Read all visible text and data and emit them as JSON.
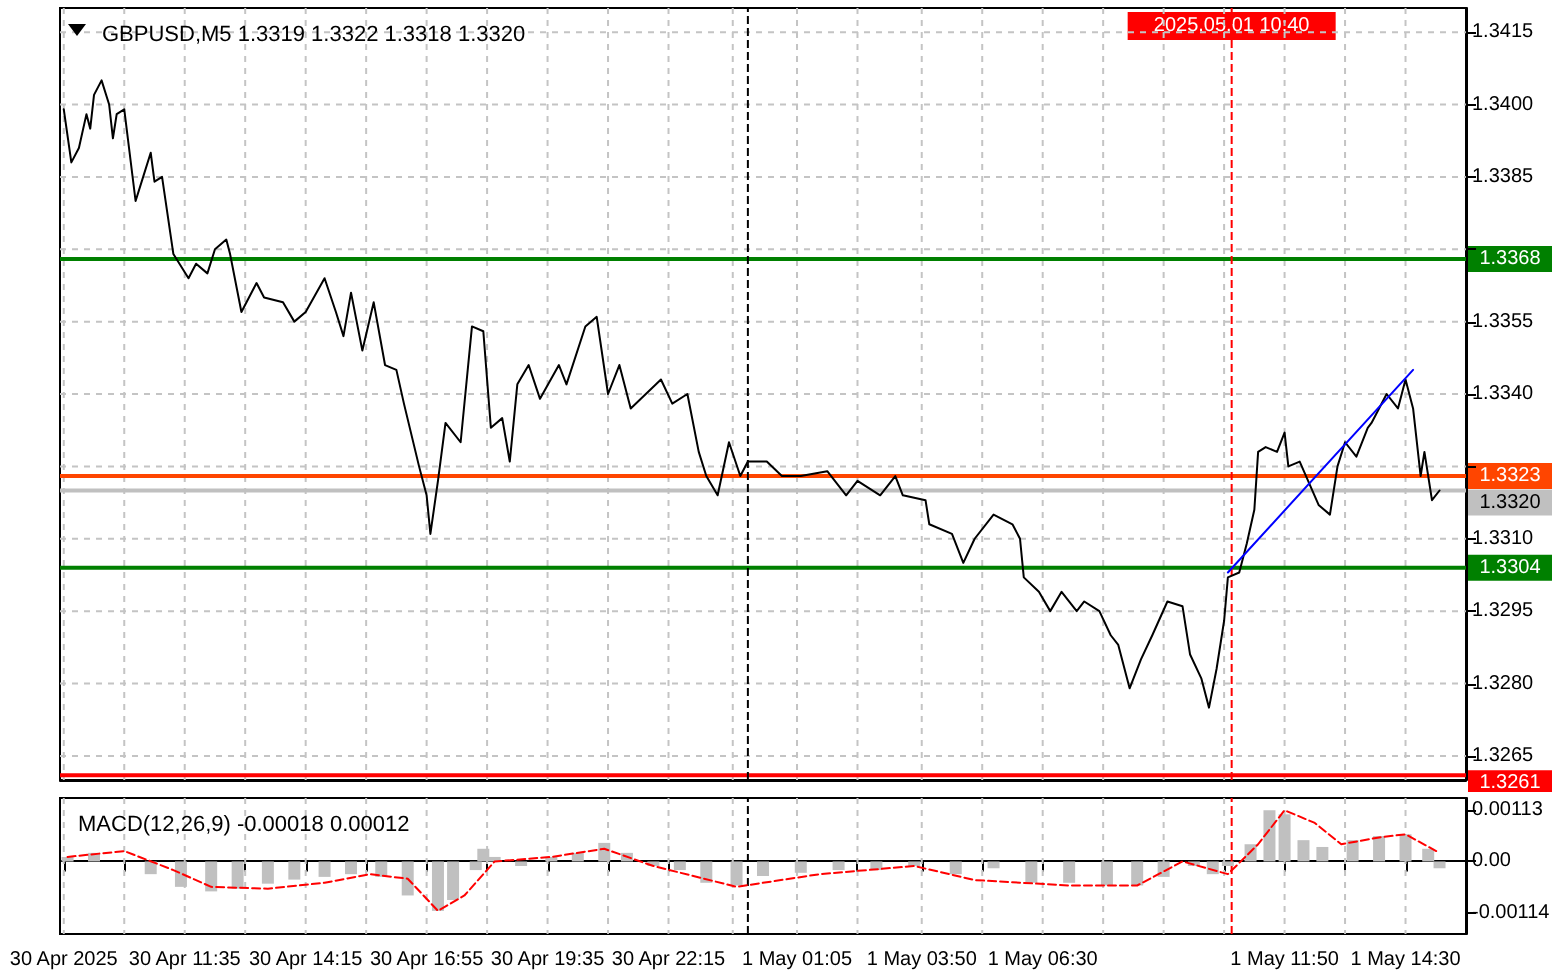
{
  "chart_data": [
    {
      "type": "line",
      "title": "GBPUSD,M5 1.3319 1.3322 1.3318 1.3320",
      "series": [
        {
          "color": "#000000",
          "x": [
            "2025-04-30T08:55",
            "2025-04-30T09:05",
            "2025-04-30T09:15",
            "2025-04-30T09:25",
            "2025-04-30T09:30",
            "2025-04-30T09:35",
            "2025-04-30T09:45",
            "2025-04-30T09:55",
            "2025-04-30T10:00",
            "2025-04-30T10:05",
            "2025-04-30T10:15",
            "2025-04-30T10:30",
            "2025-04-30T10:40",
            "2025-04-30T10:50",
            "2025-04-30T10:55",
            "2025-04-30T11:05",
            "2025-04-30T11:20",
            "2025-04-30T11:40",
            "2025-04-30T11:50",
            "2025-04-30T12:05",
            "2025-04-30T12:15",
            "2025-04-30T12:30",
            "2025-04-30T12:35",
            "2025-04-30T12:50",
            "2025-04-30T13:10",
            "2025-04-30T13:20",
            "2025-04-30T13:45",
            "2025-04-30T14:00",
            "2025-04-30T14:15",
            "2025-04-30T14:40",
            "2025-04-30T14:55",
            "2025-04-30T15:05",
            "2025-04-30T15:15",
            "2025-04-30T15:30",
            "2025-04-30T15:45",
            "2025-04-30T16:00",
            "2025-04-30T16:15",
            "2025-04-30T16:25",
            "2025-04-30T16:45",
            "2025-04-30T16:55",
            "2025-04-30T17:00",
            "2025-04-30T17:10",
            "2025-04-30T17:20",
            "2025-04-30T17:40",
            "2025-04-30T17:55",
            "2025-04-30T18:10",
            "2025-04-30T18:20",
            "2025-04-30T18:35",
            "2025-04-30T18:45",
            "2025-04-30T18:55",
            "2025-04-30T19:10",
            "2025-04-30T19:25",
            "2025-04-30T19:50",
            "2025-04-30T20:00",
            "2025-04-30T20:25",
            "2025-04-30T20:40",
            "2025-04-30T20:55",
            "2025-04-30T21:10",
            "2025-04-30T21:25",
            "2025-04-30T22:05",
            "2025-04-30T22:20",
            "2025-04-30T22:40",
            "2025-04-30T22:55",
            "2025-04-30T23:05",
            "2025-04-30T23:20",
            "2025-04-30T23:35",
            "2025-04-30T23:50",
            "2025-05-01T00:00",
            "2025-05-01T00:25",
            "2025-05-01T00:45",
            "2025-05-01T01:10",
            "2025-05-01T01:45",
            "2025-05-01T02:10",
            "2025-05-01T02:25",
            "2025-05-01T02:55",
            "2025-05-01T03:15",
            "2025-05-01T03:25",
            "2025-05-01T03:55",
            "2025-05-01T04:00",
            "2025-05-01T04:30",
            "2025-05-01T04:45",
            "2025-05-01T05:00",
            "2025-05-01T05:25",
            "2025-05-01T05:50",
            "2025-05-01T06:00",
            "2025-05-01T06:05",
            "2025-05-01T06:25",
            "2025-05-01T06:40",
            "2025-05-01T06:55",
            "2025-05-01T07:15",
            "2025-05-01T07:25",
            "2025-05-01T07:45",
            "2025-05-01T08:00",
            "2025-05-01T08:10",
            "2025-05-01T08:25",
            "2025-05-01T08:40",
            "2025-05-01T08:55",
            "2025-05-01T09:15",
            "2025-05-01T09:35",
            "2025-05-01T09:45",
            "2025-05-01T10:00",
            "2025-05-01T10:10",
            "2025-05-01T10:20",
            "2025-05-01T10:30",
            "2025-05-01T10:35",
            "2025-05-01T10:50",
            "2025-05-01T11:00",
            "2025-05-01T11:10",
            "2025-05-01T11:15",
            "2025-05-01T11:25",
            "2025-05-01T11:40",
            "2025-05-01T11:50",
            "2025-05-01T11:55",
            "2025-05-01T12:10",
            "2025-05-01T12:35",
            "2025-05-01T12:50",
            "2025-05-01T13:00",
            "2025-05-01T13:10",
            "2025-05-01T13:25",
            "2025-05-01T13:40",
            "2025-05-01T13:45",
            "2025-05-01T14:05",
            "2025-05-01T14:20",
            "2025-05-01T14:30",
            "2025-05-01T14:40",
            "2025-05-01T14:50",
            "2025-05-01T14:55",
            "2025-05-01T15:05",
            "2025-05-01T15:15"
          ],
          "values": [
            1.3399,
            1.3388,
            1.3391,
            1.3398,
            1.3395,
            1.3402,
            1.3405,
            1.34,
            1.3393,
            1.3398,
            1.3399,
            1.338,
            1.3385,
            1.339,
            1.3384,
            1.3385,
            1.3369,
            1.3364,
            1.3367,
            1.3365,
            1.337,
            1.3372,
            1.3369,
            1.3357,
            1.3363,
            1.336,
            1.3359,
            1.3355,
            1.3357,
            1.3364,
            1.3357,
            1.3352,
            1.3361,
            1.3349,
            1.3359,
            1.3346,
            1.3345,
            1.3338,
            1.3325,
            1.3319,
            1.3311,
            1.3322,
            1.3334,
            1.333,
            1.3354,
            1.3353,
            1.3333,
            1.3335,
            1.3326,
            1.3342,
            1.3346,
            1.3339,
            1.3346,
            1.3342,
            1.3354,
            1.3356,
            1.334,
            1.3346,
            1.3337,
            1.3343,
            1.3338,
            1.334,
            1.3328,
            1.3323,
            1.3319,
            1.333,
            1.3323,
            1.3326,
            1.3326,
            1.3323,
            1.3323,
            1.3324,
            1.3319,
            1.3322,
            1.3319,
            1.3323,
            1.3319,
            1.3318,
            1.3313,
            1.3311,
            1.3305,
            1.331,
            1.3315,
            1.3313,
            1.331,
            1.3302,
            1.3299,
            1.3295,
            1.3299,
            1.3295,
            1.3297,
            1.3295,
            1.329,
            1.3288,
            1.3279,
            1.3285,
            1.329,
            1.3297,
            1.3296,
            1.3286,
            1.3281,
            1.3275,
            1.3283,
            1.3293,
            1.3302,
            1.3303,
            1.3309,
            1.3316,
            1.3328,
            1.3329,
            1.3328,
            1.3332,
            1.3325,
            1.3326,
            1.3317,
            1.3315,
            1.3325,
            1.333,
            1.3327,
            1.3333,
            1.3334,
            1.334,
            1.3337,
            1.3343,
            1.3337,
            1.3323,
            1.3328,
            1.3318,
            1.332
          ]
        },
        {
          "color": "#0000ff",
          "x": [
            "2025-05-01T10:35",
            "2025-05-01T14:40"
          ],
          "values": [
            1.3303,
            1.3345
          ]
        }
      ],
      "xlim": [
        "2025-04-30T08:50",
        "2025-05-01T15:50"
      ],
      "xticks": [
        {
          "value": "2025-04-30T08:55",
          "label": null
        },
        {
          "value": "2025-04-30T10:15",
          "label": null
        },
        {
          "value": "2025-04-30T11:35",
          "label": null
        },
        {
          "value": "2025-04-30T12:55",
          "label": null
        },
        {
          "value": "2025-04-30T14:15",
          "label": null
        },
        {
          "value": "2025-04-30T15:35",
          "label": null
        },
        {
          "value": "2025-04-30T16:55",
          "label": null
        },
        {
          "value": "2025-04-30T18:15",
          "label": null
        },
        {
          "value": "2025-04-30T19:35",
          "label": null
        },
        {
          "value": "2025-04-30T20:55",
          "label": null
        },
        {
          "value": "2025-04-30T22:15",
          "label": null
        },
        {
          "value": "2025-04-30T23:40",
          "label": null
        },
        {
          "value": "2025-05-01T01:05",
          "label": null
        },
        {
          "value": "2025-05-01T02:25",
          "label": null
        },
        {
          "value": "2025-05-01T03:50",
          "label": null
        },
        {
          "value": "2025-05-01T05:10",
          "label": null
        },
        {
          "value": "2025-05-01T06:30",
          "label": null
        },
        {
          "value": "2025-05-01T07:50",
          "label": null
        },
        {
          "value": "2025-05-01T09:10",
          "label": null
        },
        {
          "value": "2025-05-01T10:30",
          "label": null
        },
        {
          "value": "2025-05-01T11:50",
          "label": null
        },
        {
          "value": "2025-05-01T13:10",
          "label": null
        },
        {
          "value": "2025-05-01T14:30",
          "label": null
        }
      ],
      "ylim": [
        1.326,
        1.342
      ],
      "yticks": [
        {
          "value": 1.3265,
          "label": "1.3265"
        },
        {
          "value": 1.328,
          "label": "1.3280"
        },
        {
          "value": 1.3295,
          "label": "1.3295"
        },
        {
          "value": 1.331,
          "label": "1.3310"
        },
        {
          "value": 1.3325,
          "label": null
        },
        {
          "value": 1.334,
          "label": "1.3340"
        },
        {
          "value": 1.3355,
          "label": "1.3355"
        },
        {
          "value": 1.337,
          "label": null
        },
        {
          "value": 1.3385,
          "label": "1.3385"
        },
        {
          "value": 1.34,
          "label": "1.3400"
        },
        {
          "value": 1.3415,
          "label": "1.3415"
        }
      ],
      "grid": true,
      "tick_labels": "y",
      "marker": "none",
      "ref_lines": [
        {
          "axis": "y",
          "value": 1.3368,
          "label": "1.3368",
          "color": "#008000"
        },
        {
          "axis": "y",
          "value": 1.3304,
          "label": "1.3304",
          "color": "#008000"
        },
        {
          "axis": "y",
          "value": 1.3261,
          "label": "1.3261",
          "color": "#ff0000"
        },
        {
          "axis": "y",
          "value": 1.3323,
          "label": "1.3323",
          "color": "#ff4500"
        },
        {
          "axis": "y",
          "value": 1.332,
          "label": "1.3320",
          "color": "#c0c0c0"
        },
        {
          "axis": "x",
          "value": "2025-05-01T00:00",
          "color": "#000000",
          "line_style": "dashed"
        },
        {
          "axis": "x",
          "value": "2025-05-01T10:40",
          "label": "2025.05.01 10:40",
          "color": "#ff0000",
          "line_style": "dashed"
        }
      ]
    },
    {
      "type": "bar",
      "title": "MACD(12,26,9) -0.00018 0.00012",
      "series": [
        {
          "color": "#c0c0c0",
          "x": [
            "2025-04-30T09:00",
            "2025-04-30T09:35",
            "2025-04-30T10:15",
            "2025-04-30T10:50",
            "2025-04-30T11:30",
            "2025-04-30T12:10",
            "2025-04-30T12:45",
            "2025-04-30T13:25",
            "2025-04-30T14:00",
            "2025-04-30T14:40",
            "2025-04-30T15:15",
            "2025-04-30T15:55",
            "2025-04-30T16:30",
            "2025-04-30T17:10",
            "2025-04-30T17:30",
            "2025-04-30T18:00",
            "2025-04-30T18:10",
            "2025-04-30T18:25",
            "2025-04-30T19:00",
            "2025-04-30T19:40",
            "2025-04-30T20:15",
            "2025-04-30T20:50",
            "2025-04-30T21:20",
            "2025-04-30T21:55",
            "2025-04-30T22:30",
            "2025-04-30T23:05",
            "2025-04-30T23:45",
            "2025-05-01T00:20",
            "2025-05-01T01:10",
            "2025-05-01T02:00",
            "2025-05-01T02:50",
            "2025-05-01T03:40",
            "2025-05-01T04:35",
            "2025-05-01T05:25",
            "2025-05-01T06:15",
            "2025-05-01T07:05",
            "2025-05-01T07:55",
            "2025-05-01T08:35",
            "2025-05-01T09:10",
            "2025-05-01T09:50",
            "2025-05-01T10:15",
            "2025-05-01T10:35",
            "2025-05-01T11:05",
            "2025-05-01T11:30",
            "2025-05-01T11:50",
            "2025-05-01T12:15",
            "2025-05-01T12:40",
            "2025-05-01T13:20",
            "2025-05-01T13:55",
            "2025-05-01T14:30",
            "2025-05-01T15:00",
            "2025-05-01T15:15"
          ],
          "values": [
            0.0001,
            0.00019,
            0,
            -0.00028,
            -0.00056,
            -0.00066,
            -0.0006,
            -0.00049,
            -0.0004,
            -0.00034,
            -0.00028,
            -0.00034,
            -0.00075,
            -0.00109,
            -0.00085,
            -0.00019,
            0.00028,
            0.0001,
            -0.0001,
            0.0001,
            0.00019,
            0.00041,
            0.00019,
            -0.0001,
            -0.00019,
            -0.00047,
            -0.00053,
            -0.00032,
            -0.00025,
            -0.00019,
            -0.00019,
            -0.0001,
            -0.00028,
            -0.00015,
            -0.00047,
            -0.00047,
            -0.00053,
            -0.00053,
            -0.00034,
            -0.0001,
            -0.00028,
            -0.0001,
            0.00038,
            0.00113,
            0.00104,
            0.00047,
            0.00032,
            0.00047,
            0.00056,
            0.0006,
            0.00028,
            -0.00015
          ]
        },
        {
          "type": "line",
          "color": "#ff0000",
          "line_style": "dashed",
          "x": [
            "2025-04-30T09:00",
            "2025-04-30T10:15",
            "2025-04-30T11:20",
            "2025-04-30T12:10",
            "2025-04-30T13:25",
            "2025-04-30T14:40",
            "2025-04-30T15:40",
            "2025-04-30T16:30",
            "2025-04-30T17:10",
            "2025-04-30T17:45",
            "2025-04-30T18:25",
            "2025-04-30T19:40",
            "2025-04-30T20:50",
            "2025-04-30T21:55",
            "2025-04-30T23:45",
            "2025-05-01T01:35",
            "2025-05-01T03:40",
            "2025-05-01T05:00",
            "2025-05-01T07:05",
            "2025-05-01T08:35",
            "2025-05-01T09:35",
            "2025-05-01T10:35",
            "2025-05-01T11:15",
            "2025-05-01T11:50",
            "2025-05-01T12:30",
            "2025-05-01T13:05",
            "2025-05-01T13:55",
            "2025-05-01T14:30",
            "2025-05-01T15:15"
          ],
          "values": [
            0.0001,
            0.00023,
            -0.00019,
            -0.00056,
            -0.0006,
            -0.00047,
            -0.00028,
            -0.00038,
            -0.00109,
            -0.00075,
            0,
            0.0001,
            0.00028,
            -0.0001,
            -0.00056,
            -0.00028,
            -0.0001,
            -0.00041,
            -0.00053,
            -0.00053,
            0,
            -0.00028,
            0.00038,
            0.00113,
            0.00085,
            0.00038,
            0.00053,
            0.0006,
            0.00019
          ]
        }
      ],
      "xlim": [
        "2025-04-30T08:50",
        "2025-05-01T15:50"
      ],
      "xticks": [
        {
          "value": "2025-04-30T08:55",
          "label": "30 Apr 2025"
        },
        {
          "value": "2025-04-30T10:15",
          "label": null
        },
        {
          "value": "2025-04-30T11:35",
          "label": "30 Apr 11:35"
        },
        {
          "value": "2025-04-30T12:55",
          "label": null
        },
        {
          "value": "2025-04-30T14:15",
          "label": "30 Apr 14:15"
        },
        {
          "value": "2025-04-30T15:35",
          "label": null
        },
        {
          "value": "2025-04-30T16:55",
          "label": "30 Apr 16:55"
        },
        {
          "value": "2025-04-30T18:15",
          "label": null
        },
        {
          "value": "2025-04-30T19:35",
          "label": "30 Apr 19:35"
        },
        {
          "value": "2025-04-30T20:55",
          "label": null
        },
        {
          "value": "2025-04-30T22:15",
          "label": "30 Apr 22:15"
        },
        {
          "value": "2025-04-30T23:40",
          "label": null
        },
        {
          "value": "2025-05-01T01:05",
          "label": "1 May 01:05"
        },
        {
          "value": "2025-05-01T02:25",
          "label": null
        },
        {
          "value": "2025-05-01T03:50",
          "label": "1 May 03:50"
        },
        {
          "value": "2025-05-01T05:10",
          "label": null
        },
        {
          "value": "2025-05-01T06:30",
          "label": "1 May 06:30"
        },
        {
          "value": "2025-05-01T07:50",
          "label": null
        },
        {
          "value": "2025-05-01T09:10",
          "label": null
        },
        {
          "value": "2025-05-01T10:30",
          "label": null
        },
        {
          "value": "2025-05-01T11:50",
          "label": "1 May 11:50"
        },
        {
          "value": "2025-05-01T13:10",
          "label": null
        },
        {
          "value": "2025-05-01T14:30",
          "label": "1 May 14:30"
        }
      ],
      "ylim": [
        -0.0016,
        0.0014
      ],
      "yticks": [
        {
          "value": -0.00114,
          "label": "-0.00114"
        },
        {
          "value": 0,
          "label": "0.00"
        },
        {
          "value": 0.00113,
          "label": "0.00113"
        }
      ],
      "grid": "x",
      "marker": "none",
      "ref_lines": [
        {
          "axis": "x",
          "value": "2025-05-01T00:00",
          "color": "#000000",
          "line_style": "dashed"
        },
        {
          "axis": "x",
          "value": "2025-05-01T10:40",
          "color": "#ff0000",
          "line_style": "dashed"
        }
      ]
    }
  ]
}
